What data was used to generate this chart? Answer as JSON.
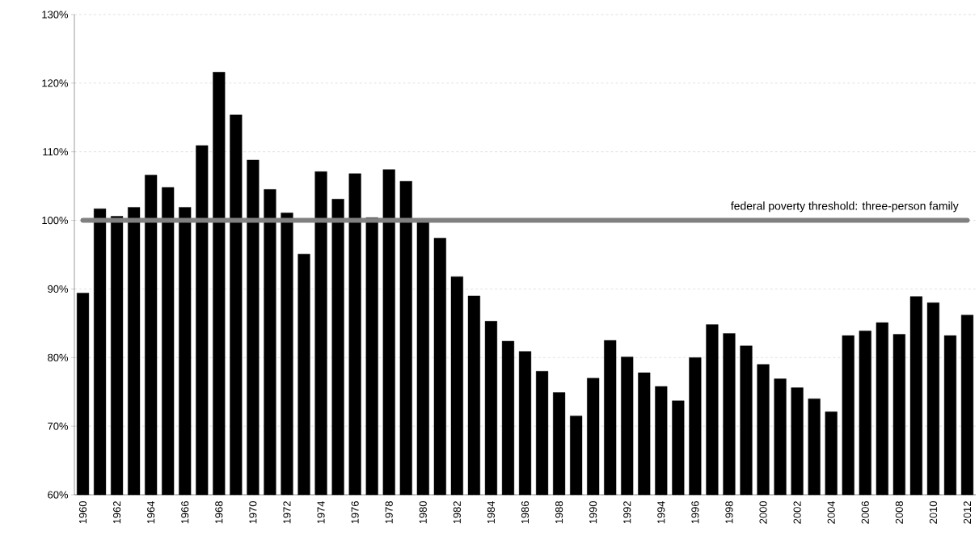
{
  "chart_data": {
    "type": "bar",
    "categories": [
      "1960",
      null,
      "1962",
      null,
      "1964",
      null,
      "1966",
      null,
      "1968",
      null,
      "1970",
      null,
      "1972",
      null,
      "1974",
      null,
      "1976",
      null,
      "1978",
      null,
      "1980",
      null,
      "1982",
      null,
      "1984",
      null,
      "1986",
      null,
      "1988",
      null,
      "1990",
      null,
      "1992",
      null,
      "1994",
      null,
      "1996",
      null,
      "1998",
      null,
      "2000",
      null,
      "2002",
      null,
      "2004",
      null,
      "2006",
      null,
      "2008",
      null,
      "2010",
      null,
      "2012"
    ],
    "values": [
      89.4,
      101.7,
      100.6,
      101.9,
      106.6,
      104.8,
      101.9,
      110.9,
      121.6,
      115.4,
      108.8,
      104.5,
      101.1,
      95.1,
      107.1,
      103.1,
      106.8,
      100.4,
      107.4,
      105.7,
      99.7,
      97.4,
      91.8,
      89.0,
      85.3,
      82.4,
      80.9,
      78.0,
      74.9,
      71.5,
      77.0,
      82.5,
      80.1,
      77.8,
      75.8,
      73.7,
      80.0,
      84.8,
      83.5,
      81.7,
      79.0,
      76.9,
      75.6,
      74.0,
      72.1,
      83.2,
      83.9,
      85.1,
      83.4,
      88.9,
      88.0,
      83.2,
      86.2
    ],
    "color": "#000000",
    "ylim": [
      60,
      130
    ],
    "yticks": [
      {
        "value": 60,
        "label": "60%"
      },
      {
        "value": 70,
        "label": "70%"
      },
      {
        "value": 80,
        "label": "80%"
      },
      {
        "value": 90,
        "label": "90%"
      },
      {
        "value": 100,
        "label": "100%"
      },
      {
        "value": 110,
        "label": "110%"
      },
      {
        "value": 120,
        "label": "120%"
      },
      {
        "value": 130,
        "label": "130%"
      }
    ],
    "grid": "y",
    "ref_lines": [
      {
        "axis": "y",
        "value": 100,
        "label": "federal poverty threshold: three-person family",
        "color": "#808080"
      }
    ]
  }
}
